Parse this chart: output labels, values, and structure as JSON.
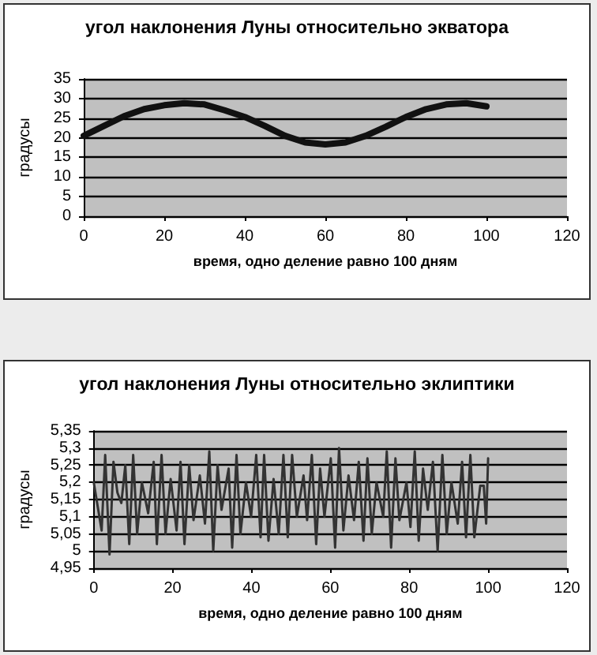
{
  "chart_data": [
    {
      "type": "line",
      "title": "угол наклонения Луны относительно экватора",
      "xlabel": "время, одно деление равно 100 дням",
      "ylabel": "градусы",
      "xlim": [
        0,
        120
      ],
      "xticks": [
        0,
        20,
        40,
        60,
        80,
        100,
        120
      ],
      "ylim": [
        0,
        35
      ],
      "yticks": [
        0,
        5,
        10,
        15,
        20,
        25,
        30,
        35
      ],
      "grid": "y",
      "marker": "none",
      "line_style": "solid",
      "series": [
        {
          "color": "#111111",
          "x": [
            0,
            5,
            10,
            15,
            20,
            25,
            30,
            35,
            40,
            45,
            50,
            55,
            60,
            65,
            70,
            75,
            80,
            85,
            90,
            95,
            100
          ],
          "values": [
            20.5,
            23,
            25.5,
            27.3,
            28.3,
            28.8,
            28.5,
            27,
            25.3,
            23,
            20.5,
            18.8,
            18.3,
            18.8,
            20.5,
            22.8,
            25.3,
            27.3,
            28.5,
            28.8,
            28
          ]
        }
      ]
    },
    {
      "type": "line",
      "title": "угол наклонения Луны относительно эклиптики",
      "xlabel": "время, одно деление равно 100 дням",
      "ylabel": "градусы",
      "xlim": [
        0,
        120
      ],
      "xticks": [
        0,
        20,
        40,
        60,
        80,
        100,
        120
      ],
      "ylim": [
        4.95,
        5.35
      ],
      "yticks": [
        {
          "value": 4.95,
          "label": "4,95"
        },
        {
          "value": 5,
          "label": "5"
        },
        {
          "value": 5.05,
          "label": "5,05"
        },
        {
          "value": 5.1,
          "label": "5,1"
        },
        {
          "value": 5.15,
          "label": "5,15"
        },
        {
          "value": 5.2,
          "label": "5,2"
        },
        {
          "value": 5.25,
          "label": "5,25"
        },
        {
          "value": 5.3,
          "label": "5,3"
        },
        {
          "value": 5.35,
          "label": "5,35"
        }
      ],
      "grid": "y",
      "marker": "none",
      "line_style": "solid",
      "series": [
        {
          "color": "#333333",
          "x": [
            0,
            2,
            2.9,
            4,
            5,
            6,
            7,
            8,
            9,
            10,
            11,
            12.2,
            13.8,
            15.2,
            16,
            17.2,
            18.2,
            19.5,
            21,
            22,
            23,
            24.2,
            25.3,
            26.9,
            28.2,
            29.3,
            30.3,
            31.4,
            32.4,
            34.2,
            35.1,
            36.2,
            37.2,
            38.6,
            39.9,
            41.2,
            42.3,
            43.2,
            44.3,
            45.6,
            46.9,
            48.1,
            49.2,
            50.3,
            51.5,
            53.2,
            54.1,
            55.3,
            56.4,
            57.4,
            58.5,
            60.1,
            61.2,
            62.2,
            63.3,
            64.6,
            66,
            67.2,
            68.4,
            69.4,
            70.5,
            71.7,
            73.4,
            74.3,
            75.4,
            76.5,
            77.5,
            79.3,
            80.3,
            81.4,
            82.4,
            83.5,
            84.7,
            86,
            87.2,
            88.4,
            89.5,
            90.7,
            92.3,
            93.4,
            94.4,
            95.5,
            96.5,
            98,
            98.9,
            99.5,
            100
          ],
          "values": [
            5.2,
            5.06,
            5.28,
            4.99,
            5.26,
            5.17,
            5.14,
            5.25,
            5.02,
            5.28,
            5.05,
            5.2,
            5.11,
            5.26,
            5.02,
            5.28,
            5.05,
            5.21,
            5.06,
            5.26,
            5.02,
            5.25,
            5.09,
            5.22,
            5.08,
            5.29,
            5,
            5.25,
            5.12,
            5.24,
            5.01,
            5.28,
            5.05,
            5.2,
            5.1,
            5.28,
            5.04,
            5.28,
            5.03,
            5.21,
            5.05,
            5.28,
            5.04,
            5.28,
            5.1,
            5.22,
            5.09,
            5.28,
            5.02,
            5.24,
            5.1,
            5.27,
            5.01,
            5.3,
            5.06,
            5.22,
            5.09,
            5.26,
            5.03,
            5.27,
            5.05,
            5.2,
            5.1,
            5.29,
            5.01,
            5.27,
            5.09,
            5.2,
            5.07,
            5.29,
            5.03,
            5.24,
            5.12,
            5.26,
            5,
            5.28,
            5.05,
            5.2,
            5.08,
            5.26,
            5.04,
            5.28,
            5.04,
            5.19,
            5.19,
            5.08,
            5.27
          ]
        }
      ]
    }
  ]
}
